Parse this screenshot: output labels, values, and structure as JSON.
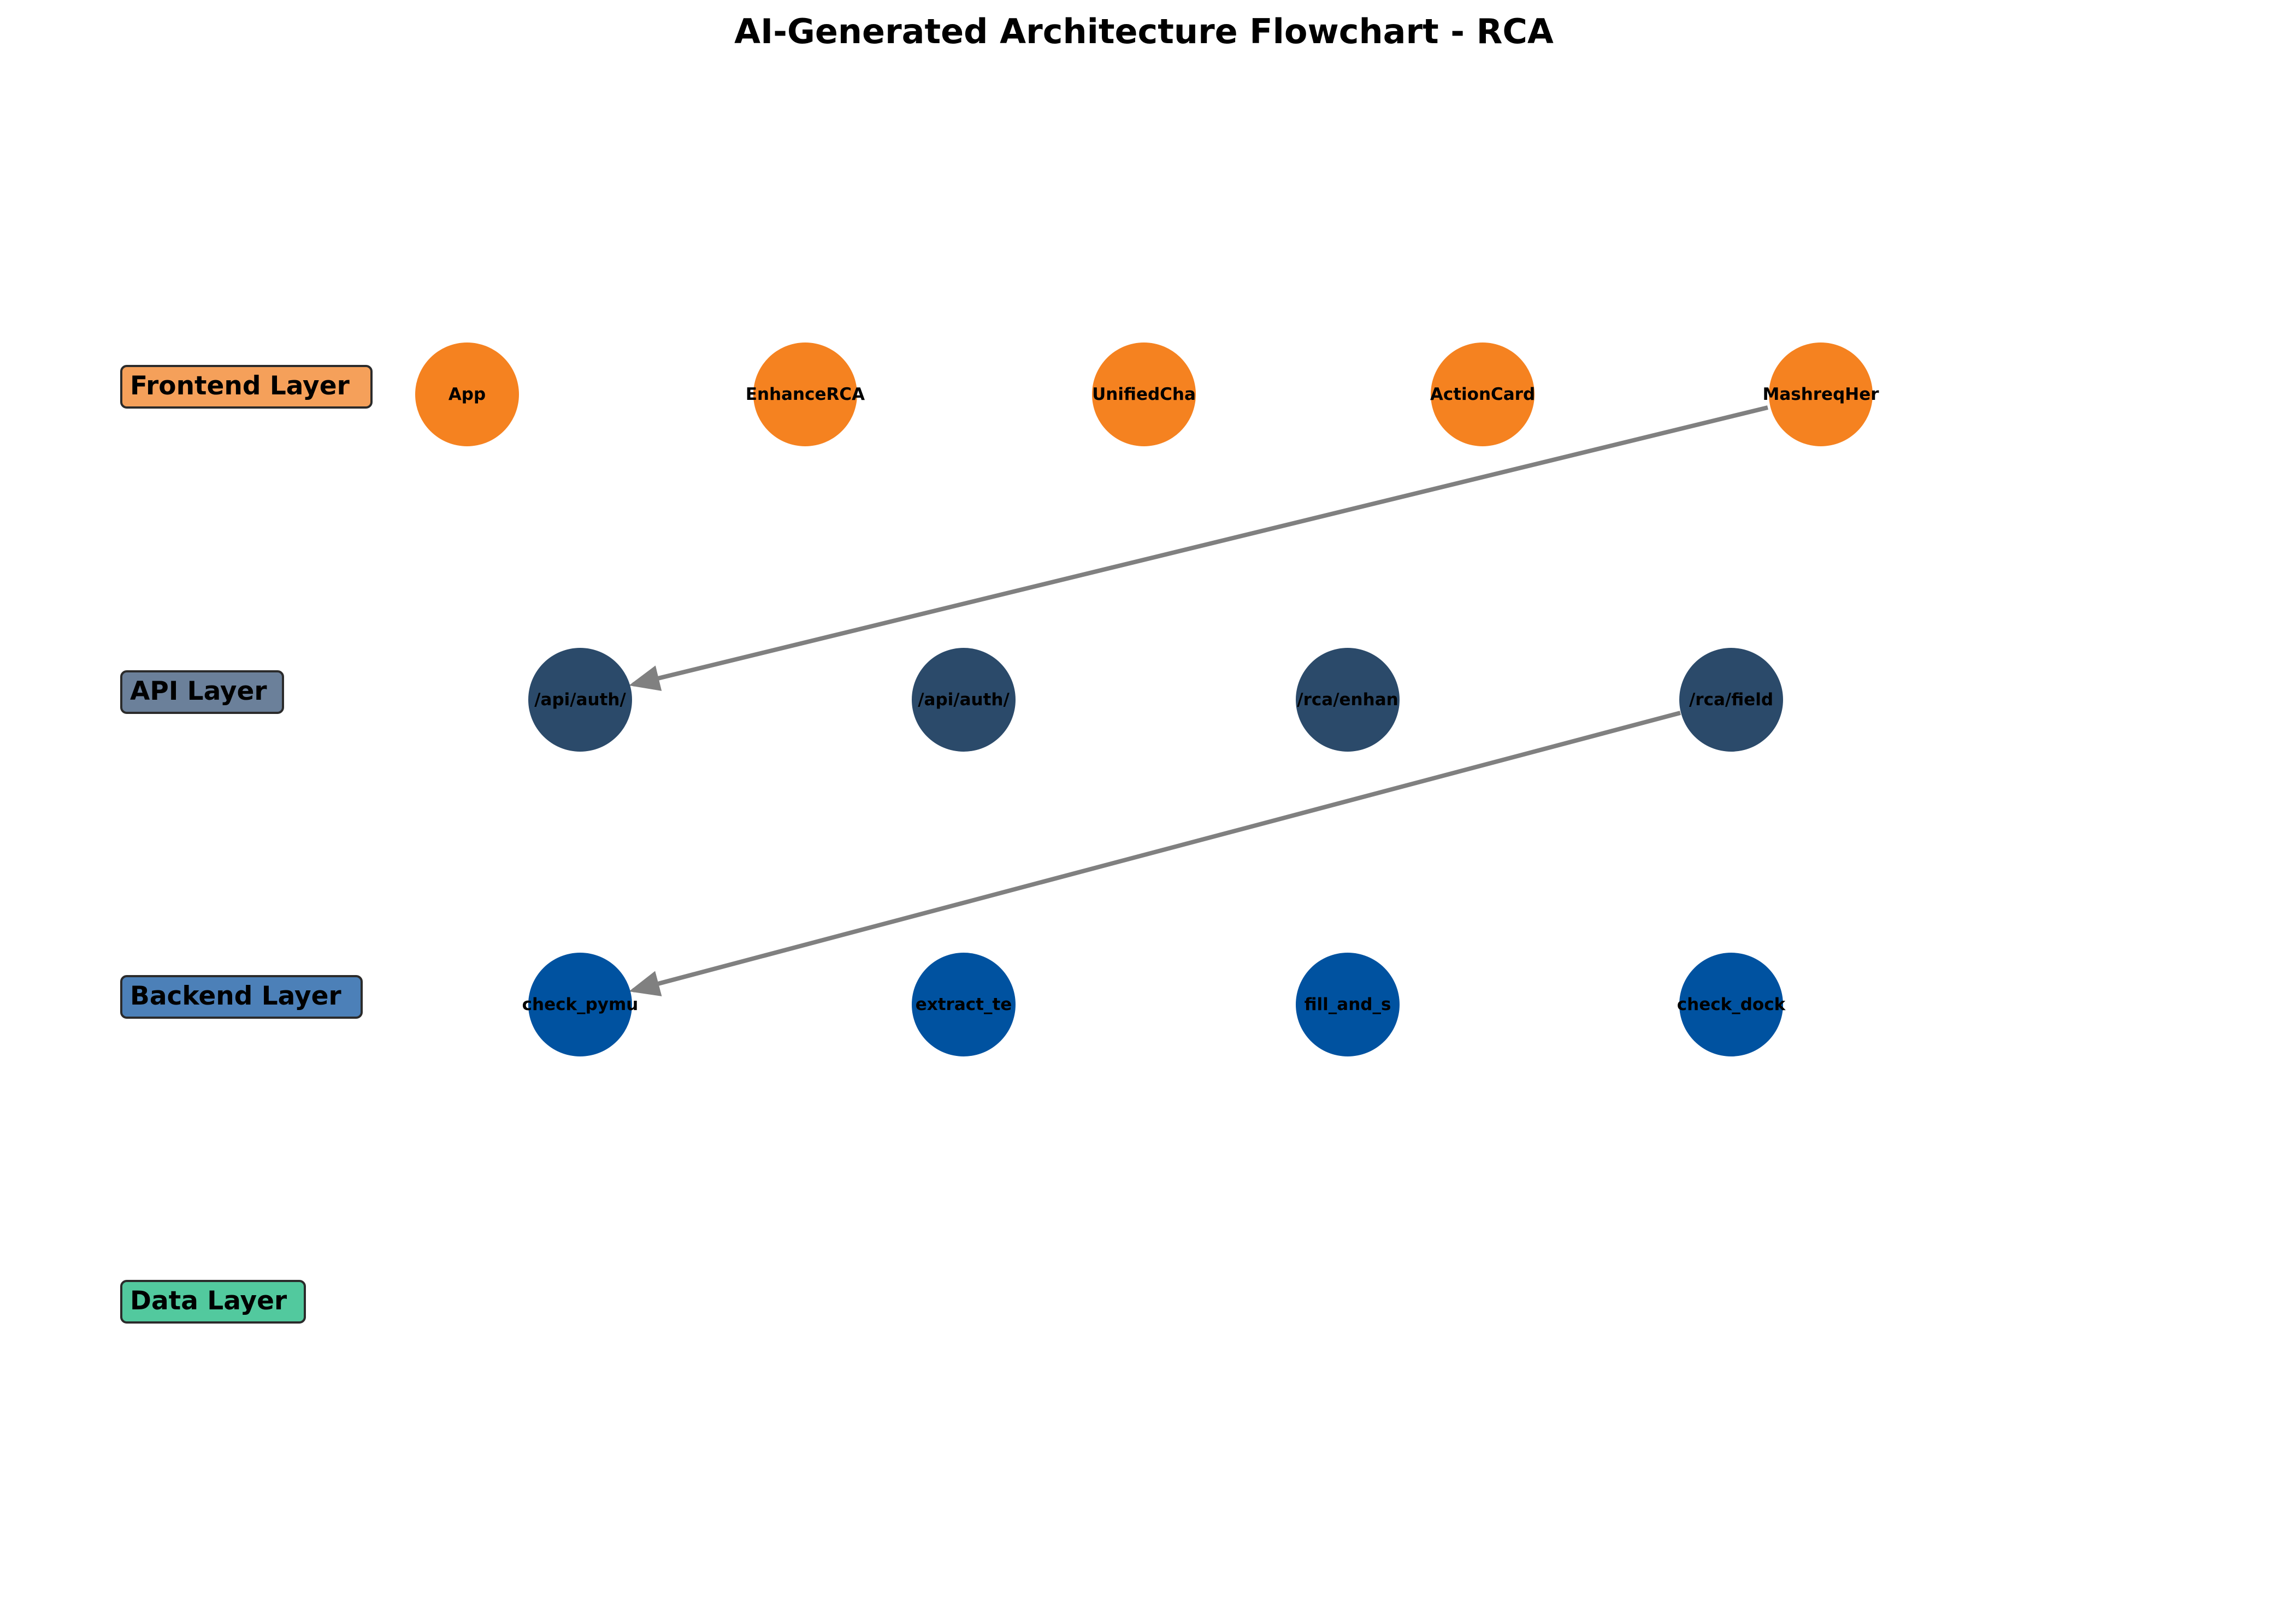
{
  "title": "AI-Generated Architecture Flowchart - RCA",
  "colors": {
    "frontend_node": "#f58220",
    "frontend_label_bg": "#f5a05a",
    "api_node": "#2b4a6a",
    "api_label_bg": "#6b809a",
    "backend_node": "#0052a0",
    "backend_label_bg": "#4c80b8",
    "data_label_bg": "#52c99e",
    "edge": "#808080"
  },
  "layers": [
    {
      "id": "frontend",
      "label": "Frontend Layer",
      "nodes": [
        "App",
        "EnhanceRCA",
        "UnifiedCha",
        "ActionCard",
        "MashreqHer"
      ]
    },
    {
      "id": "api",
      "label": "API Layer",
      "nodes": [
        "/api/auth/",
        "/api/auth/",
        "/rca/enhan",
        "/rca/field"
      ]
    },
    {
      "id": "backend",
      "label": "Backend Layer",
      "nodes": [
        "check_pymu",
        "extract_te",
        "fill_and_s",
        "check_dock"
      ]
    },
    {
      "id": "data",
      "label": "Data Layer",
      "nodes": []
    }
  ],
  "edges": [
    {
      "from": "MashreqHer",
      "to": "/api/auth/"
    },
    {
      "from": "/rca/field",
      "to": "check_pymu"
    }
  ]
}
